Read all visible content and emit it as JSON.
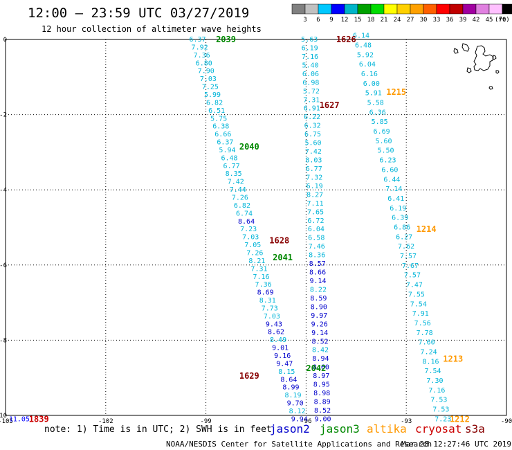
{
  "header": {
    "title": "12:00 – 23:59 UTC 03/27/2019",
    "subtitle": "12 hour collection of altimeter wave heights"
  },
  "color_scale": {
    "labels": [
      "3",
      "6",
      "9",
      "12",
      "15",
      "18",
      "21",
      "24",
      "27",
      "30",
      "33",
      "36",
      "39",
      "42",
      "45",
      "70"
    ],
    "unit": "(ft)",
    "colors": [
      "#808080",
      "#c0c0c0",
      "#00c8ff",
      "#0000ff",
      "#00b4c8",
      "#00a000",
      "#00dc00",
      "#ffff00",
      "#ffd000",
      "#ffa000",
      "#ff6000",
      "#ff0000",
      "#c00000",
      "#a000a0",
      "#e080e0",
      "#ffc0ff",
      "#000000"
    ]
  },
  "axes": {
    "x_ticks": [
      "-105",
      "-102",
      "-99",
      "-96",
      "-93",
      "-90"
    ],
    "y_ticks": [
      "0",
      "-2",
      "-4",
      "-6",
      "-8",
      "-10"
    ]
  },
  "satellites": [
    {
      "name": "jason2",
      "color": "#0000cc"
    },
    {
      "name": "jason3",
      "color": "#008800"
    },
    {
      "name": "altika",
      "color": "#ff9900"
    },
    {
      "name": "cryosat",
      "color": "#cc0000"
    },
    {
      "name": "s3a",
      "color": "#880000"
    }
  ],
  "footer": {
    "note": "note: 1) Time is in UTC; 2) SWH is in feet",
    "credit": "NOAA/NESDIS Center for Satellite Applications and Research",
    "timestamp": "Mar 28 12:27:46 UTC 2019"
  },
  "time_labels": [
    {
      "text": "2039",
      "color": "#008800",
      "lon": -98.7,
      "lat": 0.0
    },
    {
      "text": "2040",
      "color": "#008800",
      "lon": -98.0,
      "lat": -2.85
    },
    {
      "text": "2041",
      "color": "#008800",
      "lon": -97.0,
      "lat": -5.8
    },
    {
      "text": "2042",
      "color": "#008800",
      "lon": -96.0,
      "lat": -8.75
    },
    {
      "text": "1626",
      "color": "#880000",
      "lon": -95.1,
      "lat": 0.0
    },
    {
      "text": "1627",
      "color": "#880000",
      "lon": -95.6,
      "lat": -1.75
    },
    {
      "text": "1628",
      "color": "#880000",
      "lon": -97.1,
      "lat": -5.35
    },
    {
      "text": "1629",
      "color": "#880000",
      "lon": -98.0,
      "lat": -8.95
    },
    {
      "text": "1215",
      "color": "#ff9900",
      "lon": -93.6,
      "lat": -1.4
    },
    {
      "text": "1214",
      "color": "#ff9900",
      "lon": -92.7,
      "lat": -5.05
    },
    {
      "text": "1213",
      "color": "#ff9900",
      "lon": -91.9,
      "lat": -8.5
    },
    {
      "text": "1212",
      "color": "#ff9900",
      "lon": -91.7,
      "lat": -10.1
    },
    {
      "text": "1839",
      "color": "#cc0000",
      "lon": -104.3,
      "lat": -10.1
    }
  ],
  "edge_values": [
    {
      "text": "11.05",
      "color": "#0000ff",
      "lon": -104.9,
      "lat": -10.1
    }
  ],
  "tracks": [
    {
      "name": "jason3-pass-1",
      "start": {
        "lon": -99.25,
        "lat": 0.0
      },
      "end": {
        "lon": -96.2,
        "lat": -10.1
      },
      "values": [
        "6.37",
        "7.92",
        "7.36",
        "6.80",
        "7.90",
        "7.03",
        "7.25",
        "5.99",
        "6.82",
        "6.51",
        "5.75",
        "6.38",
        "6.66",
        "6.37",
        "5.94",
        "6.48",
        "6.77",
        "8.35",
        "7.42",
        "7.44",
        "7.26",
        "6.82",
        "6.74",
        "8.64",
        "7.23",
        "7.03",
        "7.05",
        "7.26",
        "8.21",
        "7.31",
        "7.16",
        "7.36",
        "8.69",
        "8.31",
        "7.73",
        "7.03",
        "9.43",
        "8.62",
        "8.49",
        "9.01",
        "9.16",
        "9.47",
        "8.15",
        "8.64",
        "8.99",
        "8.19",
        "9.70",
        "8.12",
        "9.94"
      ]
    },
    {
      "name": "s3a-pass-1",
      "start": {
        "lon": -95.9,
        "lat": 0.0
      },
      "end": {
        "lon": -95.5,
        "lat": -10.1
      },
      "values": [
        "5.63",
        "6.19",
        "7.16",
        "5.40",
        "6.06",
        "6.98",
        "5.72",
        "7.31",
        "6.91",
        "6.22",
        "6.32",
        "6.75",
        "5.60",
        "7.42",
        "8.03",
        "6.77",
        "7.32",
        "6.19",
        "8.27",
        "7.11",
        "7.65",
        "6.72",
        "6.04",
        "6.58",
        "7.46",
        "8.36",
        "8.57",
        "8.66",
        "9.14",
        "8.22",
        "8.59",
        "8.90",
        "9.97",
        "9.26",
        "9.14",
        "8.52",
        "8.42",
        "8.94",
        "8.60",
        "8.97",
        "8.95",
        "8.98",
        "8.89",
        "8.52",
        "9.00"
      ]
    },
    {
      "name": "altika-pass-1",
      "start": {
        "lon": -94.35,
        "lat": 0.1
      },
      "end": {
        "lon": -91.9,
        "lat": -10.1
      },
      "values": [
        "6.14",
        "6.48",
        "5.92",
        "6.04",
        "6.16",
        "6.00",
        "5.91",
        "5.58",
        "6.36",
        "5.85",
        "6.69",
        "5.60",
        "5.50",
        "6.23",
        "6.60",
        "6.44",
        "7.14",
        "6.41",
        "6.19",
        "6.39",
        "6.86",
        "6.27",
        "7.62",
        "7.57",
        "7.67",
        "7.57",
        "7.47",
        "7.55",
        "7.54",
        "7.91",
        "7.56",
        "7.78",
        "7.60",
        "7.24",
        "8.16",
        "7.54",
        "7.30",
        "7.16",
        "7.53",
        "7.53",
        "7.23"
      ]
    }
  ]
}
